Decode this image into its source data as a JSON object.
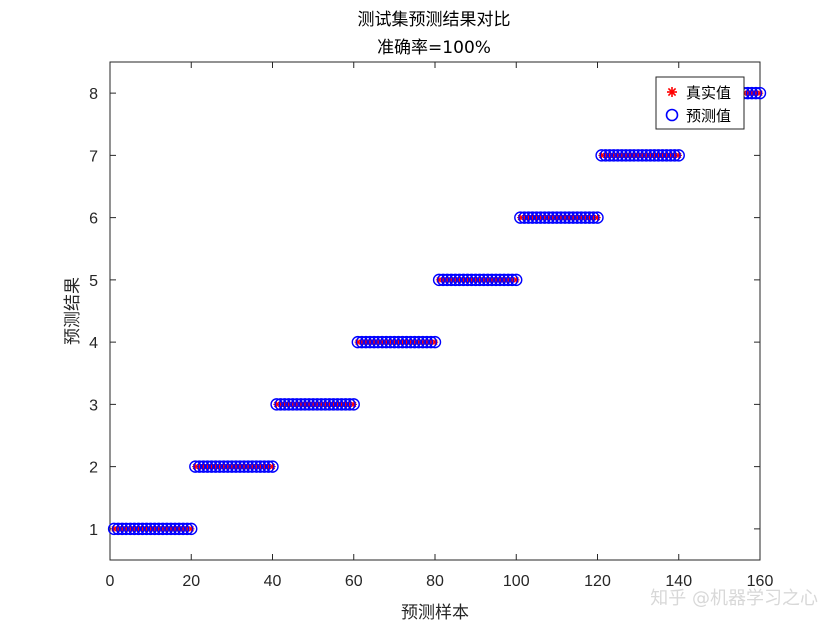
{
  "chart_data": {
    "type": "scatter",
    "title": "测试集预测结果对比",
    "subtitle": "准确率=100%",
    "xlabel": "预测样本",
    "ylabel": "预测结果",
    "xlim": [
      0,
      160
    ],
    "ylim": [
      0.5,
      8.5
    ],
    "xticks": [
      0,
      20,
      40,
      60,
      80,
      100,
      120,
      140,
      160
    ],
    "yticks": [
      1,
      2,
      3,
      4,
      5,
      6,
      7,
      8
    ],
    "grid": false,
    "legend_position": "top-right",
    "x": [
      1,
      2,
      3,
      4,
      5,
      6,
      7,
      8,
      9,
      10,
      11,
      12,
      13,
      14,
      15,
      16,
      17,
      18,
      19,
      20,
      21,
      22,
      23,
      24,
      25,
      26,
      27,
      28,
      29,
      30,
      31,
      32,
      33,
      34,
      35,
      36,
      37,
      38,
      39,
      40,
      41,
      42,
      43,
      44,
      45,
      46,
      47,
      48,
      49,
      50,
      51,
      52,
      53,
      54,
      55,
      56,
      57,
      58,
      59,
      60,
      61,
      62,
      63,
      64,
      65,
      66,
      67,
      68,
      69,
      70,
      71,
      72,
      73,
      74,
      75,
      76,
      77,
      78,
      79,
      80,
      81,
      82,
      83,
      84,
      85,
      86,
      87,
      88,
      89,
      90,
      91,
      92,
      93,
      94,
      95,
      96,
      97,
      98,
      99,
      100,
      101,
      102,
      103,
      104,
      105,
      106,
      107,
      108,
      109,
      110,
      111,
      112,
      113,
      114,
      115,
      116,
      117,
      118,
      119,
      120,
      121,
      122,
      123,
      124,
      125,
      126,
      127,
      128,
      129,
      130,
      131,
      132,
      133,
      134,
      135,
      136,
      137,
      138,
      139,
      140,
      156,
      157,
      158,
      159,
      160
    ],
    "series": [
      {
        "name": "真实值",
        "marker": "asterisk",
        "color": "#ff0000",
        "values": [
          1,
          1,
          1,
          1,
          1,
          1,
          1,
          1,
          1,
          1,
          1,
          1,
          1,
          1,
          1,
          1,
          1,
          1,
          1,
          1,
          2,
          2,
          2,
          2,
          2,
          2,
          2,
          2,
          2,
          2,
          2,
          2,
          2,
          2,
          2,
          2,
          2,
          2,
          2,
          2,
          3,
          3,
          3,
          3,
          3,
          3,
          3,
          3,
          3,
          3,
          3,
          3,
          3,
          3,
          3,
          3,
          3,
          3,
          3,
          3,
          4,
          4,
          4,
          4,
          4,
          4,
          4,
          4,
          4,
          4,
          4,
          4,
          4,
          4,
          4,
          4,
          4,
          4,
          4,
          4,
          5,
          5,
          5,
          5,
          5,
          5,
          5,
          5,
          5,
          5,
          5,
          5,
          5,
          5,
          5,
          5,
          5,
          5,
          5,
          5,
          6,
          6,
          6,
          6,
          6,
          6,
          6,
          6,
          6,
          6,
          6,
          6,
          6,
          6,
          6,
          6,
          6,
          6,
          6,
          6,
          7,
          7,
          7,
          7,
          7,
          7,
          7,
          7,
          7,
          7,
          7,
          7,
          7,
          7,
          7,
          7,
          7,
          7,
          7,
          7,
          8,
          8,
          8,
          8,
          8
        ]
      },
      {
        "name": "预测值",
        "marker": "circle",
        "color": "#0000ff",
        "values": [
          1,
          1,
          1,
          1,
          1,
          1,
          1,
          1,
          1,
          1,
          1,
          1,
          1,
          1,
          1,
          1,
          1,
          1,
          1,
          1,
          2,
          2,
          2,
          2,
          2,
          2,
          2,
          2,
          2,
          2,
          2,
          2,
          2,
          2,
          2,
          2,
          2,
          2,
          2,
          2,
          3,
          3,
          3,
          3,
          3,
          3,
          3,
          3,
          3,
          3,
          3,
          3,
          3,
          3,
          3,
          3,
          3,
          3,
          3,
          3,
          4,
          4,
          4,
          4,
          4,
          4,
          4,
          4,
          4,
          4,
          4,
          4,
          4,
          4,
          4,
          4,
          4,
          4,
          4,
          4,
          5,
          5,
          5,
          5,
          5,
          5,
          5,
          5,
          5,
          5,
          5,
          5,
          5,
          5,
          5,
          5,
          5,
          5,
          5,
          5,
          6,
          6,
          6,
          6,
          6,
          6,
          6,
          6,
          6,
          6,
          6,
          6,
          6,
          6,
          6,
          6,
          6,
          6,
          6,
          6,
          7,
          7,
          7,
          7,
          7,
          7,
          7,
          7,
          7,
          7,
          7,
          7,
          7,
          7,
          7,
          7,
          7,
          7,
          7,
          7,
          8,
          8,
          8,
          8,
          8
        ]
      }
    ]
  },
  "watermark": "知乎 @机器学习之心"
}
